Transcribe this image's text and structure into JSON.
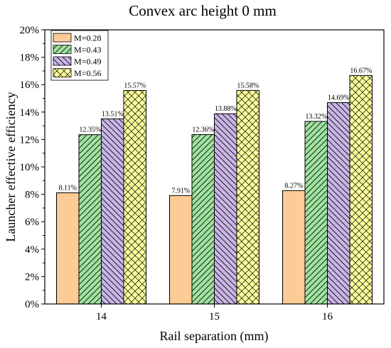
{
  "colors": {
    "bar_fills": [
      "#fccb96",
      "#9fe39f",
      "#c9b5e6",
      "#fcfc9a"
    ],
    "axis": "#000000",
    "background": "#ffffff"
  },
  "chart_data": {
    "type": "bar",
    "title": "Convex arc height 0 mm",
    "xlabel": "Rail separation (mm)",
    "ylabel": "Launcher effective efficiency",
    "categories": [
      "14",
      "15",
      "16"
    ],
    "ylim": [
      0,
      20
    ],
    "y_ticks": [
      0,
      2,
      4,
      6,
      8,
      10,
      12,
      14,
      16,
      18,
      20
    ],
    "y_tick_suffix": "%",
    "legend_position": "top-left",
    "grid": false,
    "series": [
      {
        "name": "M=0.28",
        "values": [
          8.11,
          7.91,
          8.27
        ],
        "labels": [
          "8.11%",
          "7.91%",
          "8.27%"
        ],
        "pattern": "none"
      },
      {
        "name": "M=0.43",
        "values": [
          12.35,
          12.36,
          13.32
        ],
        "labels": [
          "12.35%",
          "12.36%",
          "13.32%"
        ],
        "pattern": "diagonal-up"
      },
      {
        "name": "M=0.49",
        "values": [
          13.51,
          13.88,
          14.69
        ],
        "labels": [
          "13.51%",
          "13.88%",
          "14.69%"
        ],
        "pattern": "diagonal-down"
      },
      {
        "name": "M=0.56",
        "values": [
          15.57,
          15.58,
          16.67
        ],
        "labels": [
          "15.57%",
          "15.58%",
          "16.67%"
        ],
        "pattern": "crosshatch"
      }
    ]
  }
}
